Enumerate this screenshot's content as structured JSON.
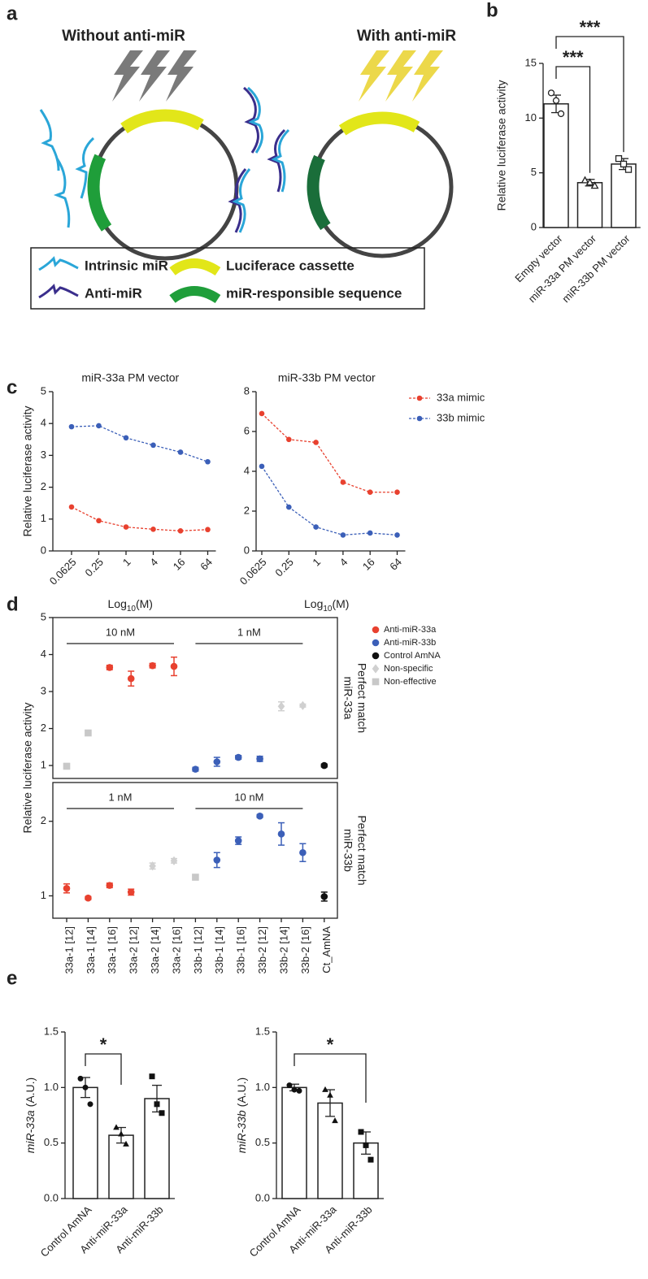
{
  "panel_labels": [
    "a",
    "b",
    "c",
    "d",
    "e"
  ],
  "diagram": {
    "left_title": "Without anti-miR",
    "right_title": "With anti-miR",
    "legend": [
      "Intrinsic miR",
      "Luciferace cassette",
      "Anti-miR",
      "miR-responsible sequence"
    ]
  },
  "chart_data": [
    {
      "type": "bar",
      "ylabel": "Relative luciferase activity",
      "categories": [
        "Empty vector",
        "miR-33a PM vector",
        "miR-33b PM vector"
      ],
      "values": [
        11.3,
        4.1,
        5.8
      ],
      "errors": [
        0.8,
        0.3,
        0.5
      ],
      "points": [
        [
          12.3,
          11.6,
          10.4
        ],
        [
          4.3,
          4.1,
          3.8
        ],
        [
          6.3,
          5.8,
          5.3
        ]
      ],
      "markers": [
        "circle",
        "triangle",
        "square"
      ],
      "ylim": [
        0,
        15
      ],
      "yticks": [
        0,
        5,
        10,
        15
      ],
      "comparisons": [
        {
          "groups": [
            0,
            1
          ],
          "label": "***"
        },
        {
          "groups": [
            0,
            2
          ],
          "label": "***"
        }
      ]
    },
    {
      "type": "line",
      "title": "miR-33a PM vector",
      "ylabel": "Relative luciferase activity",
      "xlabel": {
        "base": "Log",
        "subscript": "10",
        "rest": "(M)"
      },
      "categories": [
        "0.0625",
        "0.25",
        "1",
        "4",
        "16",
        "64"
      ],
      "ylim": [
        0,
        5
      ],
      "yticks": [
        0,
        1,
        2,
        3,
        4,
        5
      ],
      "series": [
        {
          "color": "#e8412f",
          "values": [
            1.38,
            0.95,
            0.75,
            0.68,
            0.63,
            0.67
          ]
        },
        {
          "color": "#3b5fb8",
          "values": [
            3.9,
            3.93,
            3.55,
            3.32,
            3.1,
            2.8
          ]
        }
      ]
    },
    {
      "type": "line",
      "title": "miR-33b PM vector",
      "xlabel": {
        "base": "Log",
        "subscript": "10",
        "rest": "(M)"
      },
      "categories": [
        "0.0625",
        "0.25",
        "1",
        "4",
        "16",
        "64"
      ],
      "ylim": [
        0,
        8
      ],
      "yticks": [
        0,
        2,
        4,
        6,
        8
      ],
      "series": [
        {
          "name": "33a mimic",
          "color": "#e8412f",
          "values": [
            6.9,
            5.6,
            5.45,
            3.45,
            2.95,
            2.95
          ]
        },
        {
          "name": "33b mimic",
          "color": "#3b5fb8",
          "values": [
            4.25,
            2.2,
            1.2,
            0.8,
            0.9,
            0.8
          ]
        }
      ]
    },
    {
      "type": "dot",
      "ylabel": "Relative luciferase activity",
      "categories": [
        "33a-1 [12]",
        "33a-1 [14]",
        "33a-1 [16]",
        "33a-2 [12]",
        "33a-2 [14]",
        "33a-2 [16]",
        "33b-1 [12]",
        "33b-1 [14]",
        "33b-1 [16]",
        "33b-2 [12]",
        "33b-2 [14]",
        "33b-2 [16]",
        "Ct_AmNA"
      ],
      "series": [
        {
          "name": "Anti-miR-33a",
          "color": "#e8412f",
          "marker": "circle"
        },
        {
          "name": "Anti-miR-33b",
          "color": "#3b5fb8",
          "marker": "circle"
        },
        {
          "name": "Control AmNA",
          "color": "#111111",
          "marker": "circle"
        },
        {
          "name": "Non-specific",
          "color": "#d0d0d0",
          "marker": "diamond"
        },
        {
          "name": "Non-effective",
          "color": "#c8c8c8",
          "marker": "square"
        }
      ],
      "panels": [
        {
          "side_label": [
            "miR-33a",
            "Perfect match"
          ],
          "ylim": [
            0.65,
            5
          ],
          "yticks": [
            1,
            2,
            3,
            4,
            5
          ],
          "brackets": [
            {
              "label": "10 nM",
              "span": [
                0,
                5
              ]
            },
            {
              "label": "1 nM",
              "span": [
                6,
                11
              ]
            }
          ],
          "series": [
            {
              "values": [
                null,
                null,
                3.65,
                3.35,
                3.7,
                3.68,
                null,
                null,
                null,
                null,
                null,
                null,
                null
              ],
              "errors": [
                null,
                null,
                0.06,
                0.2,
                0.06,
                0.25,
                null,
                null,
                null,
                null,
                null,
                null,
                null
              ]
            },
            {
              "values": [
                null,
                null,
                null,
                null,
                null,
                null,
                0.9,
                1.1,
                1.22,
                1.18,
                null,
                null,
                null
              ],
              "errors": [
                null,
                null,
                null,
                null,
                null,
                null,
                0.05,
                0.12,
                0.05,
                0.07,
                null,
                null,
                null
              ]
            },
            {
              "values": [
                null,
                null,
                null,
                null,
                null,
                null,
                null,
                null,
                null,
                null,
                null,
                null,
                1.0
              ],
              "errors": [
                null,
                null,
                null,
                null,
                null,
                null,
                null,
                null,
                null,
                null,
                null,
                null,
                0.04
              ]
            },
            {
              "values": [
                null,
                null,
                null,
                null,
                null,
                null,
                null,
                null,
                null,
                null,
                2.6,
                2.62,
                null
              ],
              "errors": [
                null,
                null,
                null,
                null,
                null,
                null,
                null,
                null,
                null,
                null,
                0.12,
                0.04,
                null
              ]
            },
            {
              "values": [
                0.98,
                1.88,
                null,
                null,
                null,
                null,
                null,
                null,
                null,
                null,
                null,
                null,
                null
              ]
            }
          ]
        },
        {
          "side_label": [
            "miR-33b",
            "Perfect match"
          ],
          "ylim": [
            0.7,
            2.52
          ],
          "yticks": [
            1,
            2
          ],
          "brackets": [
            {
              "label": "1 nM",
              "span": [
                0,
                5
              ]
            },
            {
              "label": "10 nM",
              "span": [
                6,
                11
              ]
            }
          ],
          "series": [
            {
              "values": [
                1.1,
                0.97,
                1.14,
                1.05,
                null,
                null,
                null,
                null,
                null,
                null,
                null,
                null,
                null
              ],
              "errors": [
                0.06,
                0.02,
                0.03,
                0.04,
                null,
                null,
                null,
                null,
                null,
                null,
                null,
                null,
                null
              ]
            },
            {
              "values": [
                null,
                null,
                null,
                null,
                null,
                null,
                null,
                1.48,
                1.74,
                2.07,
                1.83,
                1.58,
                null
              ],
              "errors": [
                null,
                null,
                null,
                null,
                null,
                null,
                null,
                0.1,
                0.05,
                0.02,
                0.15,
                0.12,
                null
              ]
            },
            {
              "values": [
                null,
                null,
                null,
                null,
                null,
                null,
                null,
                null,
                null,
                null,
                null,
                null,
                0.99
              ],
              "errors": [
                null,
                null,
                null,
                null,
                null,
                null,
                null,
                null,
                null,
                null,
                null,
                null,
                0.06
              ]
            },
            {
              "values": [
                null,
                null,
                null,
                null,
                1.4,
                1.47,
                null,
                null,
                null,
                null,
                null,
                null,
                null
              ],
              "errors": [
                null,
                null,
                null,
                null,
                0.04,
                0.03,
                null,
                null,
                null,
                null,
                null,
                null,
                null
              ]
            },
            {
              "values": [
                null,
                null,
                null,
                null,
                null,
                null,
                1.25,
                null,
                null,
                null,
                null,
                null,
                null
              ]
            }
          ]
        }
      ]
    },
    {
      "type": "bar",
      "ylabel": {
        "gene": "miR-33a",
        "unit": "(A.U.)"
      },
      "categories": [
        "Control AmNA",
        "Anti-miR-33a",
        "Anti-miR-33b"
      ],
      "values": [
        1.0,
        0.57,
        0.9
      ],
      "errors": [
        0.09,
        0.07,
        0.12
      ],
      "points": [
        [
          1.08,
          1.0,
          0.85
        ],
        [
          0.64,
          0.58,
          0.49
        ],
        [
          1.1,
          0.85,
          0.77
        ]
      ],
      "markers": [
        "circle",
        "triangle",
        "square"
      ],
      "ylim": [
        0,
        1.5
      ],
      "yticks": [
        {
          "value": 0,
          "label": "0.0"
        },
        0.5,
        {
          "value": 1,
          "label": "1.0"
        },
        1.5
      ],
      "comparisons": [
        {
          "groups": [
            0,
            1
          ],
          "label": "*"
        }
      ]
    },
    {
      "type": "bar",
      "ylabel": {
        "gene": "miR-33b",
        "unit": "(A.U.)"
      },
      "categories": [
        "Control AmNA",
        "Anti-miR-33a",
        "Anti-miR-33b"
      ],
      "values": [
        1.0,
        0.86,
        0.5
      ],
      "errors": [
        0.03,
        0.12,
        0.1
      ],
      "points": [
        [
          1.02,
          0.98,
          0.97
        ],
        [
          0.98,
          0.93,
          0.7
        ],
        [
          0.6,
          0.48,
          0.35
        ]
      ],
      "markers": [
        "circle",
        "triangle",
        "square"
      ],
      "ylim": [
        0,
        1.5
      ],
      "yticks": [
        {
          "value": 0,
          "label": "0.0"
        },
        0.5,
        {
          "value": 1,
          "label": "1.0"
        },
        1.5
      ],
      "comparisons": [
        {
          "groups": [
            0,
            2
          ],
          "label": "*"
        }
      ]
    }
  ]
}
